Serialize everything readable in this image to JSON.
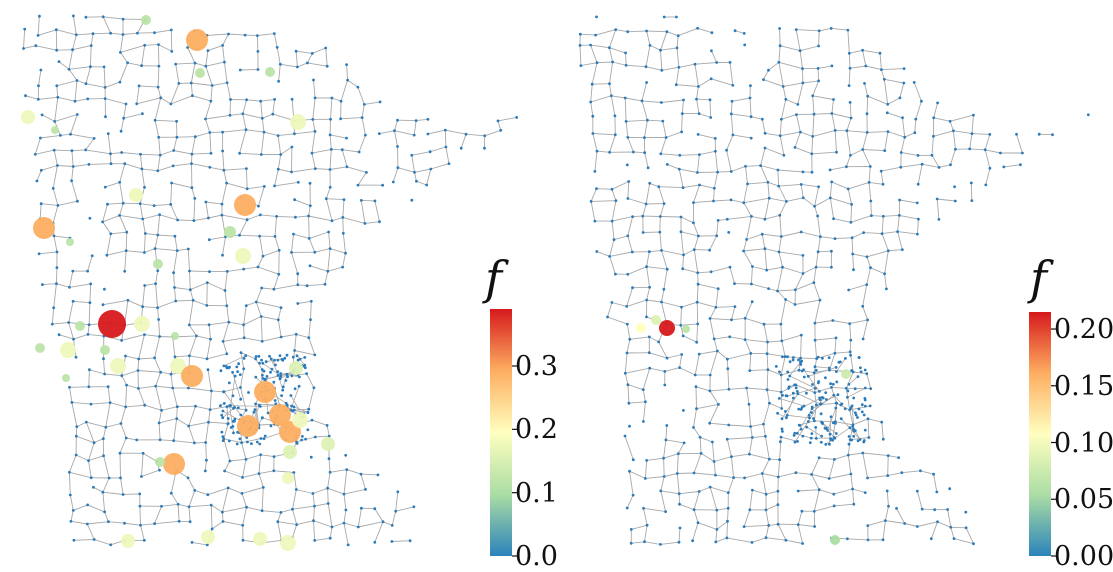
{
  "panels": [
    {
      "id": "left",
      "colorbar": {
        "label": "f",
        "min": 0.0,
        "max": 0.39,
        "ticks": [
          {
            "value": 0.0,
            "label": "0.0"
          },
          {
            "value": 0.1,
            "label": "0.1"
          },
          {
            "value": 0.2,
            "label": "0.2"
          },
          {
            "value": 0.3,
            "label": "0.3"
          }
        ]
      }
    },
    {
      "id": "right",
      "colorbar": {
        "label": "f",
        "min": 0.0,
        "max": 0.215,
        "ticks": [
          {
            "value": 0.0,
            "label": "0.00"
          },
          {
            "value": 0.05,
            "label": "0.05"
          },
          {
            "value": 0.1,
            "label": "0.10"
          },
          {
            "value": 0.15,
            "label": "0.15"
          },
          {
            "value": 0.2,
            "label": "0.20"
          }
        ]
      }
    }
  ],
  "colors": {
    "edge": "#a8a8a8",
    "node": "#2b7bba",
    "colormap": [
      "#2b83ba",
      "#abdda4",
      "#ffffbf",
      "#fdae61",
      "#d7191c"
    ]
  }
}
